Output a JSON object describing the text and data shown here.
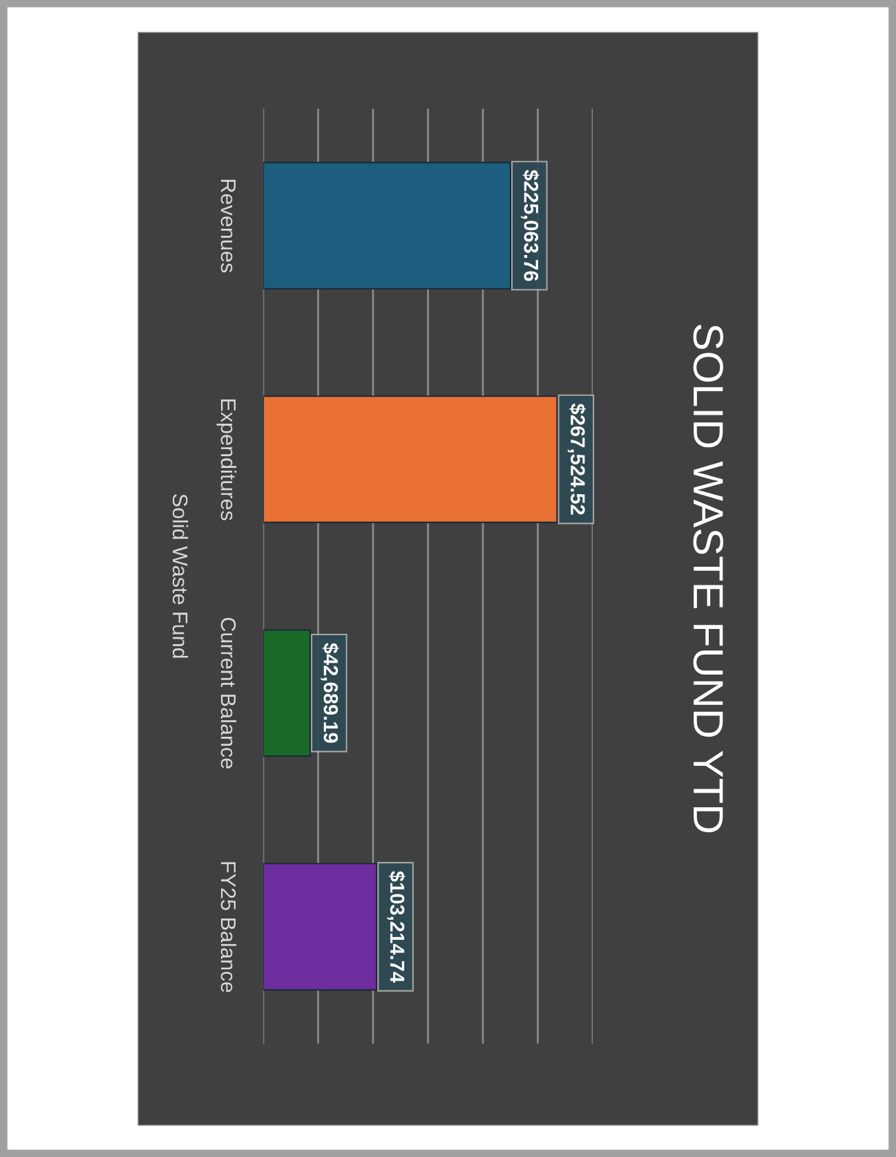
{
  "chart_data": {
    "type": "bar",
    "orientation": "horizontal",
    "title": "SOLID WASTE FUND YTD",
    "ylabel": "Solid Waste Fund",
    "categories": [
      "Revenues",
      "Expenditures",
      "Current Balance",
      "FY25 Balance"
    ],
    "values": [
      225063.76,
      267524.52,
      42689.19,
      103214.74
    ],
    "colors": [
      "#1d5e7e",
      "#e87133",
      "#1b6a28",
      "#6e2ea0"
    ],
    "value_labels": [
      "$225,063.76",
      "$267,524.52",
      "$42,689.19",
      "$103,214.74"
    ],
    "xlim": [
      0,
      300000
    ],
    "xticks": [
      {
        "value": 0,
        "label": null
      },
      {
        "value": 50000,
        "label": null
      },
      {
        "value": 100000,
        "label": null
      },
      {
        "value": 150000,
        "label": null
      },
      {
        "value": 200000,
        "label": null
      },
      {
        "value": 250000,
        "label": null
      },
      {
        "value": 300000,
        "label": null
      }
    ],
    "tick_labels": "y",
    "grid": "x",
    "legend": false
  }
}
